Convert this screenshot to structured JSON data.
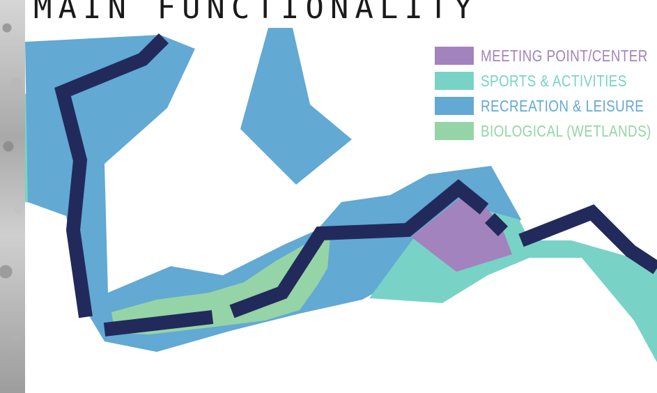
{
  "title": "MAIN FUNCTIONALITY",
  "legend": {
    "items": [
      {
        "label": "MEETING POINT/CENTER",
        "color": "#a383bd"
      },
      {
        "label": "SPORTS & ACTIVITIES",
        "color": "#78d3c6"
      },
      {
        "label": "RECREATION & LEISURE",
        "color": "#62a9d3"
      },
      {
        "label": "BIOLOGICAL (WETLANDS)",
        "color": "#95d4a6"
      }
    ]
  },
  "colors": {
    "route": "#222a5c",
    "meeting": "#a383bd",
    "sports": "#78d3c6",
    "recreation": "#62a9d3",
    "wetlands": "#95d4a6"
  }
}
